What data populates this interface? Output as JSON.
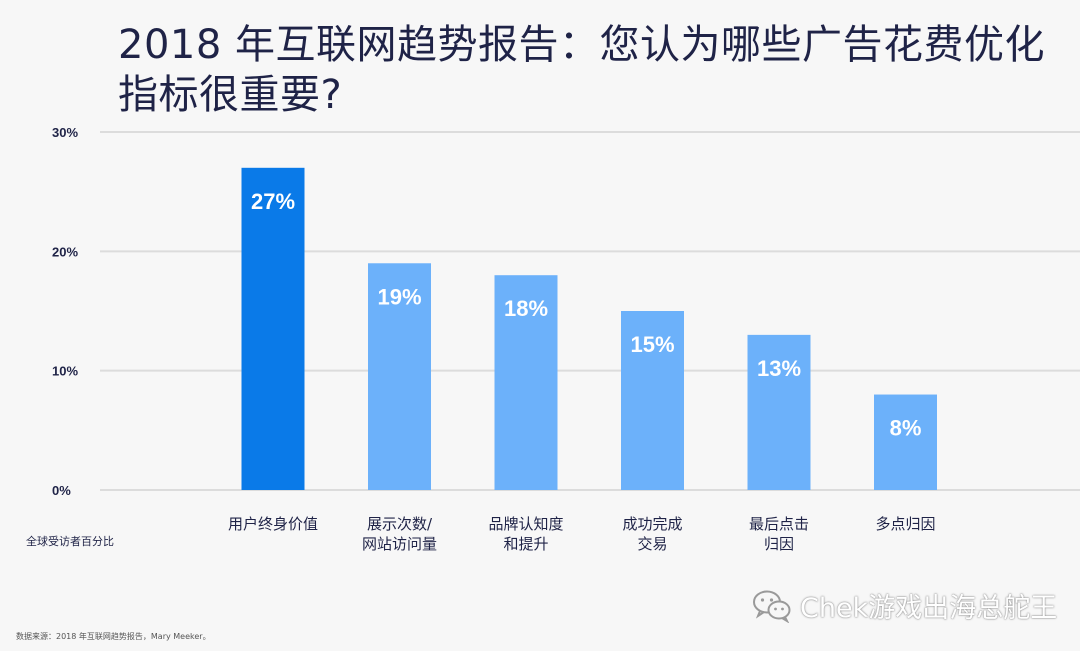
{
  "chart_data": {
    "type": "bar",
    "title": "2018 年互联网趋势报告：您认为哪些广告花费优化指标很重要?",
    "ylabel": "全球受访者百分比",
    "categories": [
      "用户终身价值",
      "展示次数/\n网站访问量",
      "品牌认知度\n和提升",
      "成功完成\n交易",
      "最后点击\n归因",
      "多点归因"
    ],
    "values": [
      27,
      19,
      18,
      15,
      13,
      8
    ],
    "data_labels": [
      "27%",
      "19%",
      "18%",
      "15%",
      "13%",
      "8%"
    ],
    "ylim": [
      0,
      30
    ],
    "y_ticks": [
      0,
      10,
      20,
      30
    ],
    "y_tick_labels": [
      "0%",
      "10%",
      "20%",
      "30%"
    ],
    "grid": true,
    "highlight_index": 0,
    "colors": {
      "highlight": "#0a7ae8",
      "bar": "#6cb1fa",
      "grid": "#dcdcdc"
    }
  },
  "footer": {
    "source": "数据来源：2018 年互联网趋势报告，Mary Meeker。",
    "watermark": "Chek游戏出海总舵王"
  },
  "icons": {
    "watermark_icon": "wechat-icon"
  }
}
